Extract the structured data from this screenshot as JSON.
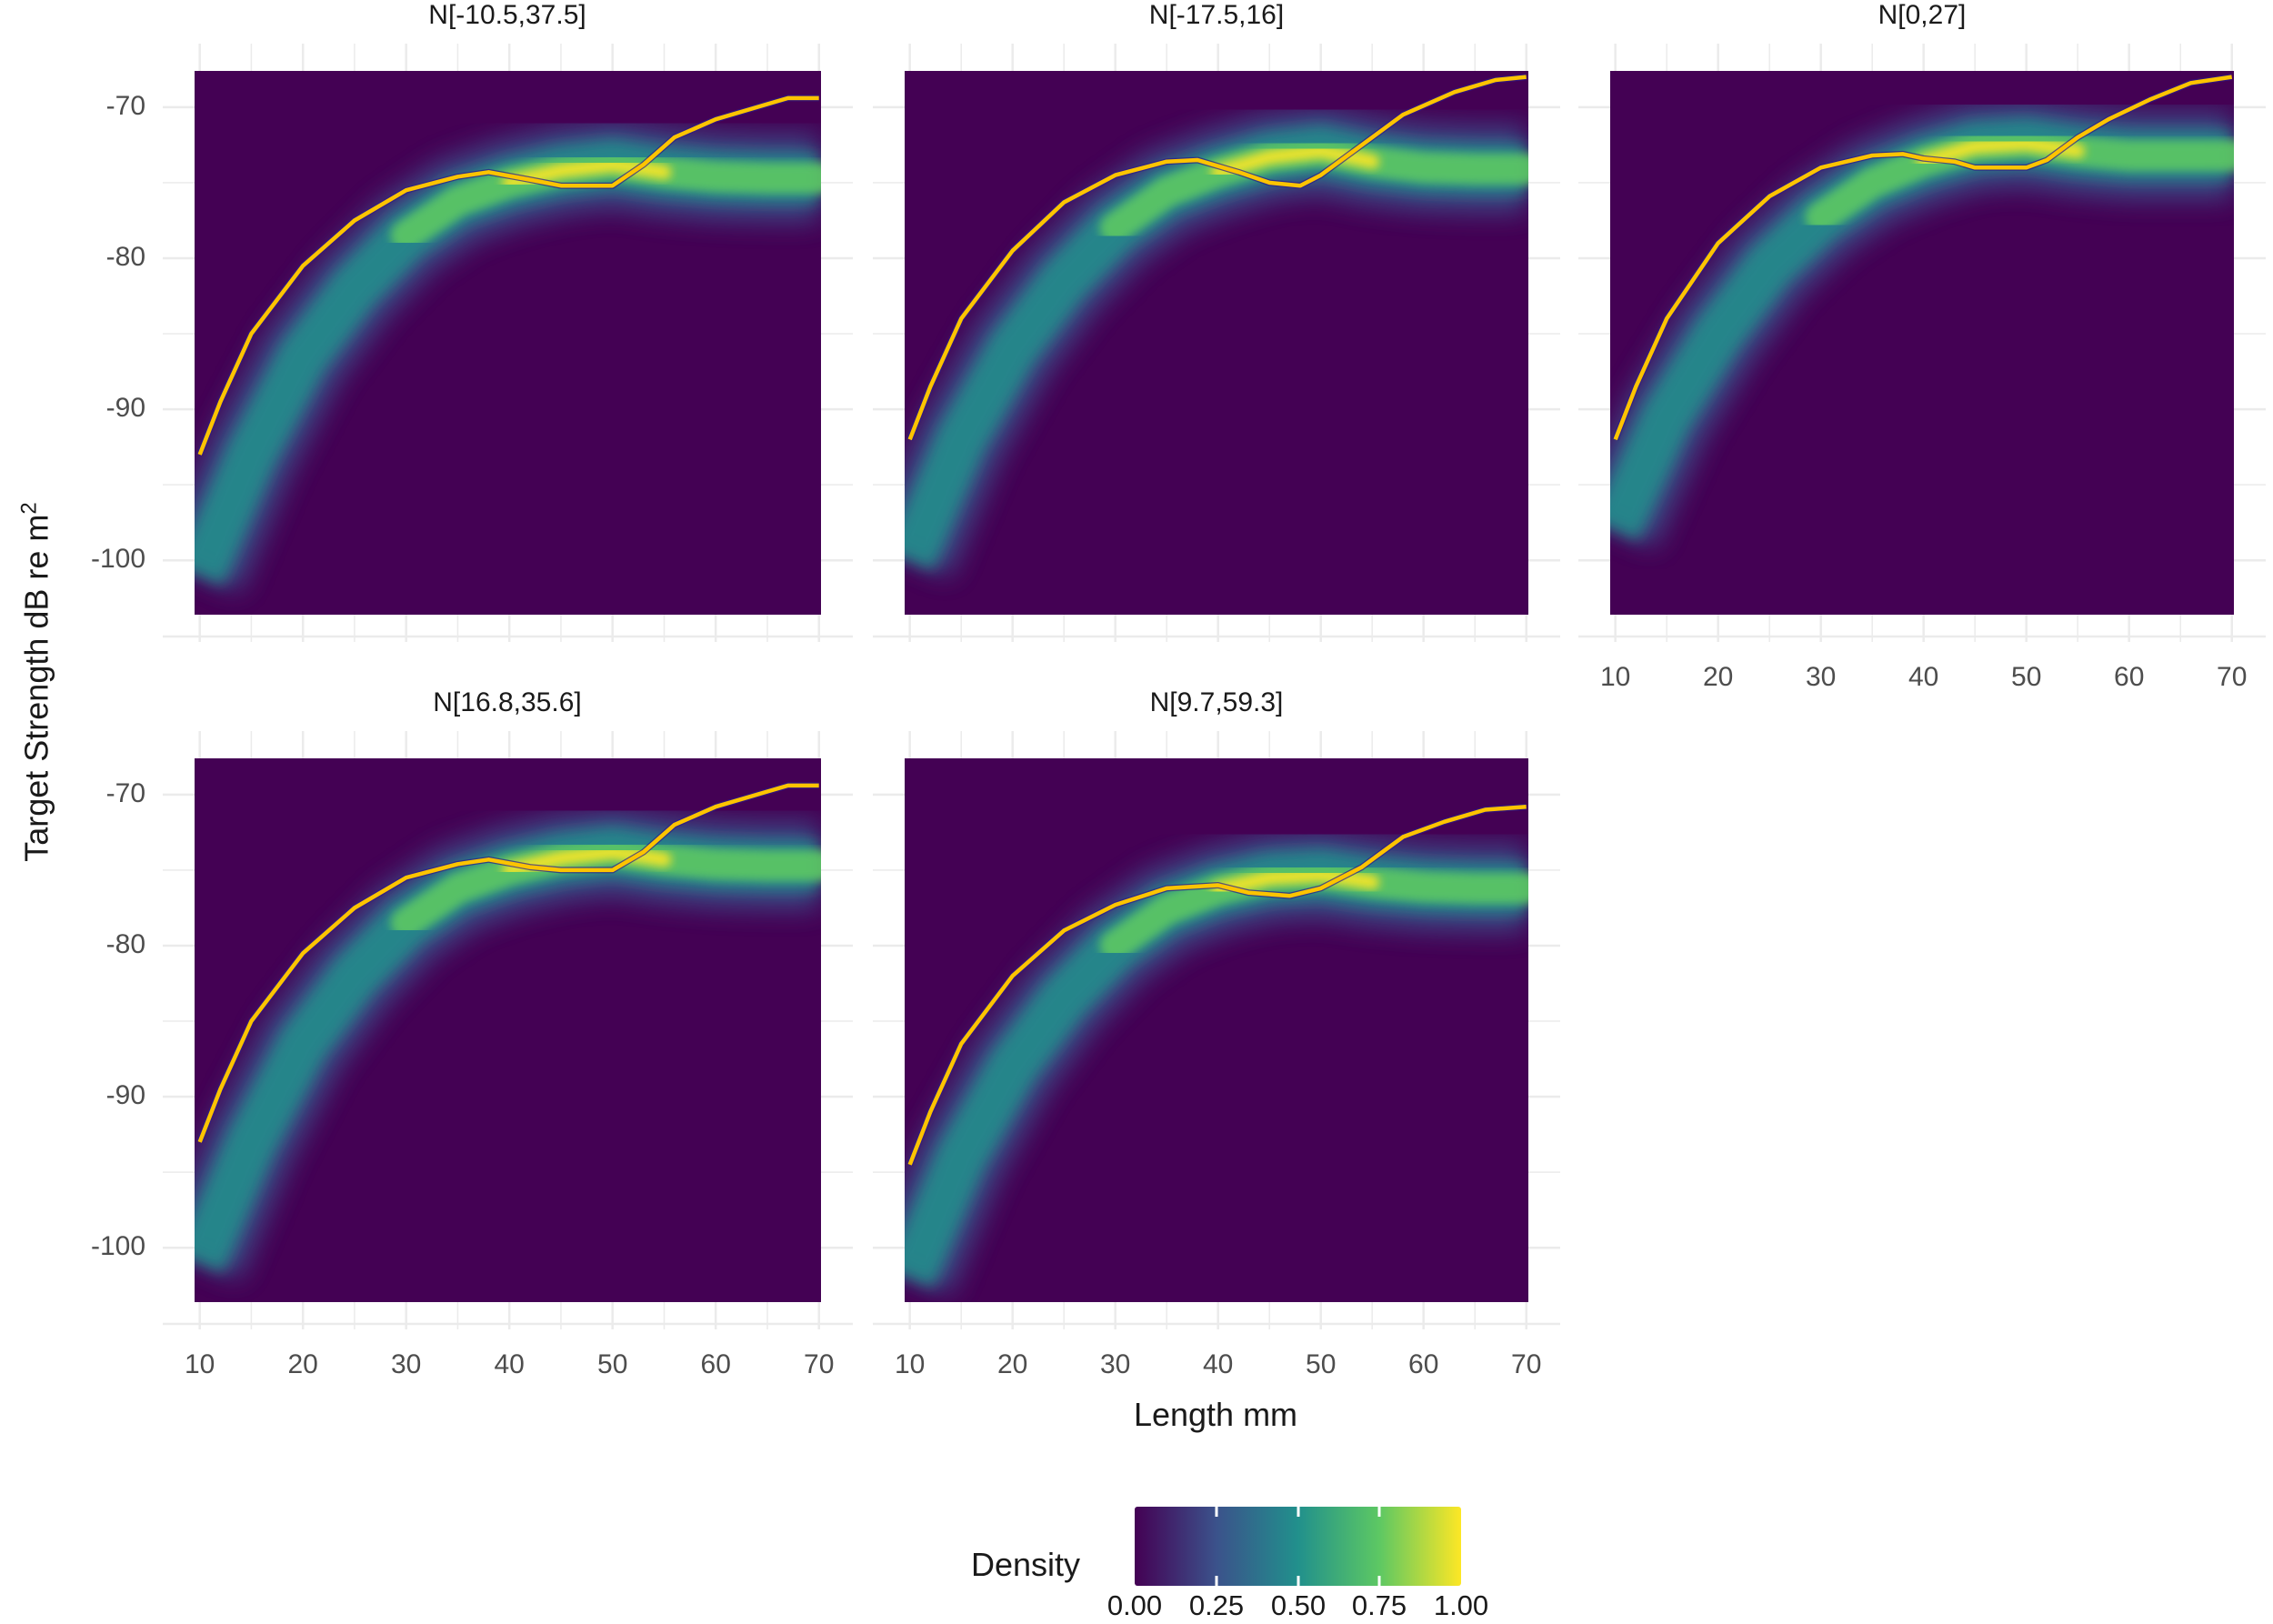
{
  "chart_data": {
    "type": "heatmap",
    "title": "",
    "xlabel": "Length mm",
    "ylabel": "Target Strength dB re m",
    "ylabel_superscript": "2",
    "xlim": [
      9.5,
      70.2
    ],
    "ylim": [
      -103.6,
      -67.6
    ],
    "x_ticks": [
      10,
      20,
      30,
      40,
      50,
      60,
      70
    ],
    "y_ticks": [
      -70,
      -80,
      -90,
      -100
    ],
    "grid": true,
    "legend": {
      "title": "Density",
      "position": "bottom",
      "colormap": "viridis",
      "ticks": [
        "0.00",
        "0.25",
        "0.50",
        "0.75",
        "1.00"
      ]
    },
    "panels": [
      {
        "title": "N[-10.5,37.5]",
        "line": {
          "x": [
            10,
            12,
            15,
            20,
            25,
            30,
            35,
            38,
            42,
            45,
            50,
            53,
            56,
            60,
            65,
            67,
            70
          ],
          "y": [
            -93,
            -89.5,
            -85,
            -80.5,
            -77.5,
            -75.5,
            -74.6,
            -74.3,
            -74.8,
            -75.2,
            -75.2,
            -73.8,
            -72,
            -70.8,
            -69.8,
            -69.4,
            -69.4
          ]
        },
        "ridge": {
          "x": [
            10,
            15,
            20,
            25,
            30,
            35,
            40,
            45,
            50,
            55,
            60,
            65,
            70
          ],
          "y": [
            -101,
            -93,
            -86.5,
            -82,
            -78.5,
            -76.2,
            -75,
            -74.2,
            -73.8,
            -74.3,
            -74.6,
            -74.7,
            -74.7
          ]
        }
      },
      {
        "title": "N[-17.5,16]",
        "line": {
          "x": [
            10,
            12,
            15,
            20,
            25,
            30,
            35,
            38,
            42,
            45,
            48,
            50,
            54,
            58,
            63,
            67,
            70
          ],
          "y": [
            -92,
            -88.5,
            -84,
            -79.5,
            -76.3,
            -74.5,
            -73.6,
            -73.5,
            -74.3,
            -75,
            -75.2,
            -74.5,
            -72.5,
            -70.5,
            -69,
            -68.2,
            -68
          ]
        },
        "ridge": {
          "x": [
            10,
            15,
            20,
            25,
            30,
            35,
            40,
            45,
            50,
            55,
            60,
            65,
            70
          ],
          "y": [
            -100,
            -92,
            -86,
            -81.5,
            -78,
            -75.6,
            -74.3,
            -73.3,
            -72.9,
            -73.6,
            -74,
            -74.1,
            -74.1
          ]
        }
      },
      {
        "title": "N[0,27]",
        "line": {
          "x": [
            10,
            12,
            15,
            20,
            25,
            30,
            35,
            38,
            40,
            43,
            45,
            50,
            52,
            55,
            58,
            62,
            66,
            70
          ],
          "y": [
            -92,
            -88.5,
            -84,
            -79,
            -75.9,
            -74,
            -73.2,
            -73.1,
            -73.4,
            -73.6,
            -74,
            -74,
            -73.5,
            -72,
            -70.8,
            -69.5,
            -68.4,
            -68
          ]
        },
        "ridge": {
          "x": [
            10,
            15,
            20,
            25,
            30,
            35,
            40,
            45,
            50,
            55,
            60,
            65,
            70
          ],
          "y": [
            -98,
            -90.5,
            -85,
            -80.5,
            -77.3,
            -75,
            -73.6,
            -72.6,
            -72.4,
            -72.9,
            -73.2,
            -73.2,
            -73.2
          ]
        }
      },
      {
        "title": "N[16.8,35.6]",
        "line": {
          "x": [
            10,
            12,
            15,
            20,
            25,
            30,
            35,
            38,
            42,
            45,
            50,
            53,
            56,
            60,
            65,
            67,
            70
          ],
          "y": [
            -93,
            -89.5,
            -85,
            -80.5,
            -77.5,
            -75.5,
            -74.6,
            -74.3,
            -74.8,
            -75,
            -75,
            -73.8,
            -72,
            -70.8,
            -69.8,
            -69.4,
            -69.4
          ]
        },
        "ridge": {
          "x": [
            10,
            15,
            20,
            25,
            30,
            35,
            40,
            45,
            50,
            55,
            60,
            65,
            70
          ],
          "y": [
            -101,
            -93,
            -86.5,
            -82,
            -78.5,
            -76.2,
            -75,
            -74.2,
            -73.8,
            -74.3,
            -74.6,
            -74.7,
            -74.7
          ]
        }
      },
      {
        "title": "N[9.7,59.3]",
        "line": {
          "x": [
            10,
            12,
            15,
            20,
            25,
            30,
            35,
            40,
            43,
            47,
            50,
            54,
            58,
            62,
            66,
            70
          ],
          "y": [
            -94.5,
            -91,
            -86.5,
            -82,
            -79,
            -77.3,
            -76.2,
            -76,
            -76.5,
            -76.7,
            -76.2,
            -74.8,
            -72.8,
            -71.8,
            -71,
            -70.8
          ]
        },
        "ridge": {
          "x": [
            10,
            15,
            20,
            25,
            30,
            35,
            40,
            45,
            50,
            55,
            60,
            65,
            70
          ],
          "y": [
            -102,
            -94,
            -88,
            -83.5,
            -80,
            -77.6,
            -76.3,
            -75.5,
            -75.3,
            -75.8,
            -76.1,
            -76.2,
            -76.2
          ]
        }
      }
    ]
  },
  "colors": {
    "background": "#440154",
    "line": "#FDC400",
    "line_edge": "#FF8C00",
    "grid": "#EBEBEB",
    "viridis": [
      "#440154",
      "#3B528B",
      "#21908C",
      "#5DC863",
      "#FDE725"
    ]
  }
}
